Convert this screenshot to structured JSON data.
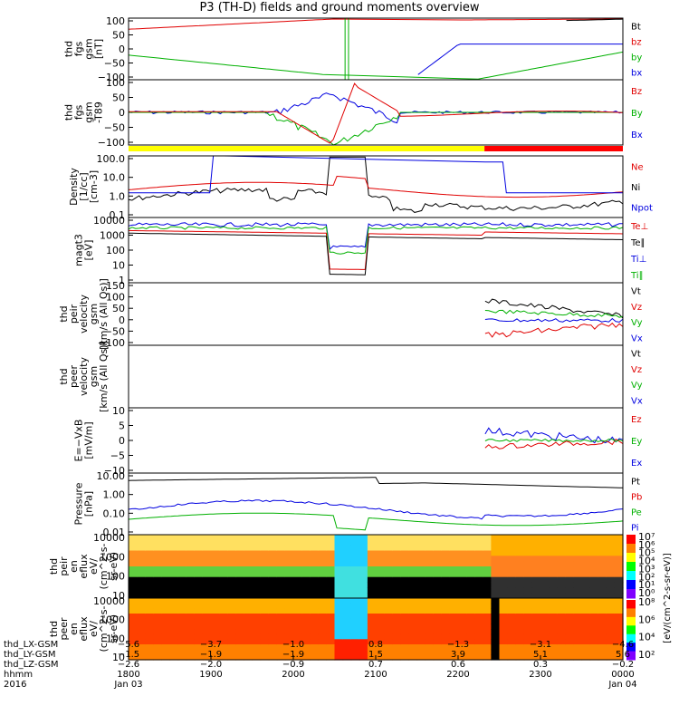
{
  "title": "P3 (TH-D) fields and ground moments overview",
  "chart_data": {
    "type": "line",
    "title": "P3 (TH-D) fields and ground moments overview",
    "x_time_ticks": [
      "1800",
      "1900",
      "2000",
      "2100",
      "2200",
      "2300",
      "0000"
    ],
    "x_date_labels": [
      "Jan 03",
      "Jan 04"
    ],
    "x_range_hhmm": [
      "1800",
      "0000"
    ],
    "panels": [
      {
        "id": "fgs",
        "ylabel": [
          "thd",
          "fgs",
          "gsm",
          "[nT]"
        ],
        "yticks": [
          "100",
          "50",
          "0",
          "−50",
          "−100"
        ],
        "ylim": [
          -100,
          100
        ],
        "series": [
          {
            "name": "Bt",
            "color": "#000000"
          },
          {
            "name": "bz",
            "color": "#e00000"
          },
          {
            "name": "by",
            "color": "#00b000"
          },
          {
            "name": "bx",
            "color": "#0000e0"
          }
        ]
      },
      {
        "id": "fgs_tbg",
        "ylabel": [
          "thd",
          "fgs",
          "gsm",
          "-T89"
        ],
        "yticks": [
          "100",
          "50",
          "0",
          "−50",
          "−100"
        ],
        "ylim": [
          -120,
          120
        ],
        "series": [
          {
            "name": "Bz",
            "color": "#e00000"
          },
          {
            "name": "By",
            "color": "#00b000"
          },
          {
            "name": "Bx",
            "color": "#0000e0"
          }
        ]
      },
      {
        "id": "density",
        "ylabel": [
          "Density",
          "[1/cc]",
          "[cm-3]"
        ],
        "yticks": [
          "100.0",
          "10.0",
          "1.0",
          "0.1"
        ],
        "log": true,
        "series": [
          {
            "name": "Ne",
            "color": "#e00000"
          },
          {
            "name": "Ni",
            "color": "#000000"
          },
          {
            "name": "Npot",
            "color": "#0000e0"
          }
        ]
      },
      {
        "id": "temp",
        "ylabel": [
          "magt3",
          "[eV]"
        ],
        "yticks": [
          "10000",
          "1000",
          "100",
          "10",
          "1"
        ],
        "log": true,
        "series": [
          {
            "name": "Te⊥",
            "color": "#e00000"
          },
          {
            "name": "Te∥",
            "color": "#000000"
          },
          {
            "name": "Ti⊥",
            "color": "#0000e0"
          },
          {
            "name": "Ti∥",
            "color": "#00b000"
          }
        ]
      },
      {
        "id": "vi",
        "ylabel": [
          "thd",
          "peir",
          "velocity",
          "gsm",
          "[km/s (All Qs)]"
        ],
        "yticks": [
          "150",
          "100",
          "50",
          "0",
          "−50",
          "−100"
        ],
        "ylim": [
          -100,
          150
        ],
        "series": [
          {
            "name": "Vt",
            "color": "#000000"
          },
          {
            "name": "Vz",
            "color": "#e00000"
          },
          {
            "name": "Vy",
            "color": "#00b000"
          },
          {
            "name": "Vx",
            "color": "#0000e0"
          }
        ]
      },
      {
        "id": "ve",
        "ylabel": [
          "thd",
          "peer",
          "velocity",
          "gsm",
          "[km/s (All Qs)]"
        ],
        "yticks": [],
        "series": [
          {
            "name": "Vt",
            "color": "#000000"
          },
          {
            "name": "Vz",
            "color": "#e00000"
          },
          {
            "name": "Vy",
            "color": "#00b000"
          },
          {
            "name": "Vx",
            "color": "#0000e0"
          }
        ]
      },
      {
        "id": "efield",
        "ylabel": [
          "E=−VxB",
          "[mV/m]"
        ],
        "yticks": [
          "10",
          "5",
          "0",
          "−5",
          "−10"
        ],
        "ylim": [
          -10,
          10
        ],
        "series": [
          {
            "name": "Ez",
            "color": "#e00000"
          },
          {
            "name": "Ey",
            "color": "#00b000"
          },
          {
            "name": "Ex",
            "color": "#0000e0"
          }
        ]
      },
      {
        "id": "pressure",
        "ylabel": [
          "Pressure",
          "[nPa]"
        ],
        "yticks": [
          "10.00",
          "1.00",
          "0.10",
          "0.01"
        ],
        "log": true,
        "series": [
          {
            "name": "Pt",
            "color": "#000000"
          },
          {
            "name": "Pb",
            "color": "#e00000"
          },
          {
            "name": "Pe",
            "color": "#00b000"
          },
          {
            "name": "Pi",
            "color": "#0000e0"
          }
        ]
      },
      {
        "id": "ion_spec",
        "ylabel": [
          "thd",
          "peir",
          "en",
          "eflux",
          "eV/",
          "(cm^2-s-",
          "sr-eV)"
        ],
        "yticks": [
          "10000",
          "1000",
          "100",
          "10"
        ],
        "type": "heatmap"
      },
      {
        "id": "elec_spec",
        "ylabel": [
          "thd",
          "peer",
          "en",
          "eflux",
          "eV/",
          "(cm^2-s-",
          "sr-eV)"
        ],
        "yticks": [
          "10000",
          "1000",
          "100",
          "10"
        ],
        "type": "heatmap"
      }
    ],
    "colorbars": [
      {
        "label": "[eV/(cm^2-s-sr-eV)] (All Qs)",
        "ticks": [
          "10⁷",
          "10⁶",
          "10⁵",
          "10⁴",
          "10³",
          "10²",
          "10¹",
          "10⁰"
        ]
      },
      {
        "label": "[eV/(cm^2-s-sr-eV)]",
        "ticks": [
          "10⁸",
          "10⁶",
          "10⁴",
          "10²"
        ]
      }
    ],
    "ephemeris": [
      {
        "name": "thd_LX-GSM",
        "values": [
          "−5.6",
          "−3.7",
          "−1.0",
          "0.8",
          "−1.3",
          "−3.1",
          "−4.6"
        ]
      },
      {
        "name": "thd_LY-GSM",
        "values": [
          "−1.5",
          "−1.9",
          "−1.9",
          "1.5",
          "3.9",
          "5.1",
          "5.6"
        ]
      },
      {
        "name": "thd_LZ-GSM",
        "values": [
          "−2.6",
          "−2.0",
          "−0.9",
          "0.7",
          "0.6",
          "0.3",
          "−0.2"
        ]
      },
      {
        "name": "hhmm",
        "values": [
          "1800",
          "1900",
          "2000",
          "2100",
          "2200",
          "2300",
          "0000"
        ]
      },
      {
        "name": "2016",
        "values": [
          "Jan 03",
          "",
          "",
          "",
          "",
          "",
          "Jan 04"
        ]
      }
    ]
  }
}
